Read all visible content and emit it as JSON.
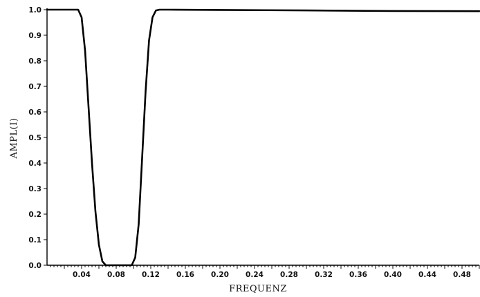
{
  "chart_data": {
    "type": "line",
    "title": "",
    "xlabel": "FREQUENZ",
    "ylabel": "AMPL(I)",
    "xlim": [
      0.0,
      0.5
    ],
    "ylim": [
      0.0,
      1.0
    ],
    "x_tick_labels": [
      "0.04",
      "0.08",
      "0.12",
      "0.16",
      "0.20",
      "0.24",
      "0.28",
      "0.32",
      "0.36",
      "0.40",
      "0.44",
      "0.48"
    ],
    "y_tick_labels": [
      "0.0",
      "0.1",
      "0.2",
      "0.3",
      "0.4",
      "0.5",
      "0.6",
      "0.7",
      "0.8",
      "0.9",
      "1.0"
    ],
    "grid": false,
    "series": [
      {
        "x": [
          0.0,
          0.036,
          0.04,
          0.044,
          0.048,
          0.052,
          0.056,
          0.06,
          0.064,
          0.068,
          0.072,
          0.08,
          0.09,
          0.098,
          0.102,
          0.106,
          0.11,
          0.114,
          0.118,
          0.122,
          0.126,
          0.13,
          0.14,
          0.2,
          0.3,
          0.4,
          0.5
        ],
        "y": [
          1.0,
          1.0,
          0.97,
          0.84,
          0.62,
          0.4,
          0.21,
          0.08,
          0.015,
          0.0,
          0.0,
          0.0,
          0.0,
          0.0,
          0.03,
          0.16,
          0.42,
          0.68,
          0.88,
          0.97,
          0.997,
          1.0,
          1.0,
          0.999,
          0.997,
          0.995,
          0.994
        ]
      }
    ]
  }
}
